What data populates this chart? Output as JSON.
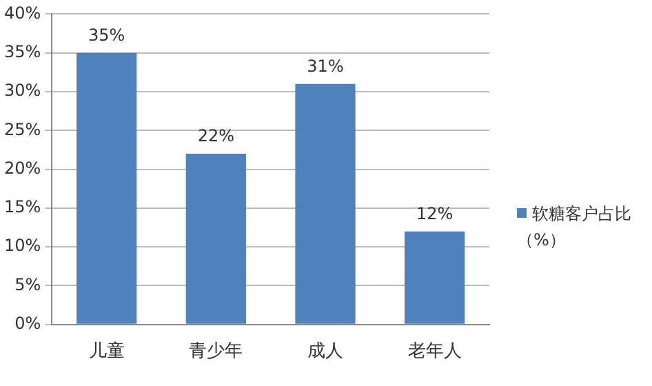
{
  "chart_data": {
    "type": "bar",
    "categories": [
      "儿童",
      "青少年",
      "成人",
      "老年人"
    ],
    "series": [
      {
        "name": "软糖客户占比（%）",
        "color": "#4f81bd",
        "values": [
          35,
          22,
          31,
          12
        ],
        "value_labels": [
          "35%",
          "22%",
          "31%",
          "12%"
        ]
      }
    ],
    "ylim": [
      0,
      40
    ],
    "yticks": [
      {
        "value": 0,
        "label": "0%"
      },
      {
        "value": 5,
        "label": "5%"
      },
      {
        "value": 10,
        "label": "10%"
      },
      {
        "value": 15,
        "label": "15%"
      },
      {
        "value": 20,
        "label": "20%"
      },
      {
        "value": 25,
        "label": "25%"
      },
      {
        "value": 30,
        "label": "30%"
      },
      {
        "value": 35,
        "label": "35%"
      },
      {
        "value": 40,
        "label": "40%"
      }
    ],
    "grid": "y",
    "legend": "right"
  }
}
